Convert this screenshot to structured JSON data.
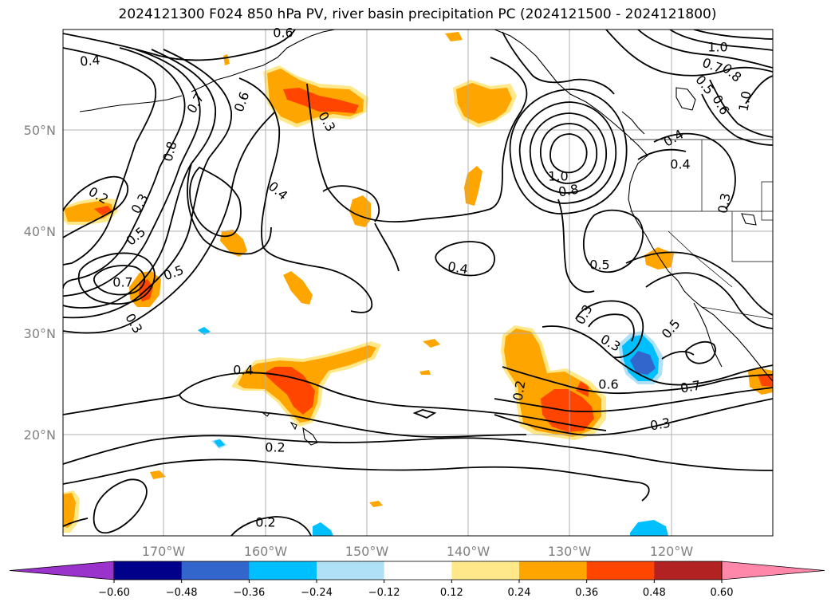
{
  "title": "2024121300 F024 850 hPa PV, river basin precipitation PC (2024121500 - 2024121800)",
  "map": {
    "lat_labels": [
      "50°N",
      "40°N",
      "30°N",
      "20°N"
    ],
    "lon_labels": [
      "170°W",
      "160°W",
      "150°W",
      "140°W",
      "130°W",
      "120°W"
    ],
    "contour_labels": [
      "0.4",
      "0.6",
      "0.3",
      "0.6",
      "0.7",
      "0.8",
      "1.0",
      "0.7",
      "0.8",
      "0.5",
      "0.6",
      "1.0",
      "0.4",
      "0.4",
      "0.3",
      "0.2",
      "0.3",
      "0.5",
      "0.7",
      "0.5",
      "0.3",
      "0.4",
      "1.0",
      "0.8",
      "0.5",
      "0.3",
      "0.3",
      "0.5",
      "0.6",
      "0.7",
      "0.3",
      "0.4",
      "0.4",
      "0.2",
      "0.2",
      "0.2"
    ],
    "land_color": "#ffffff",
    "contour_color": "#000000"
  },
  "colorbar": {
    "ticks": [
      "−0.60",
      "−0.48",
      "−0.36",
      "−0.24",
      "−0.12",
      "0.12",
      "0.24",
      "0.36",
      "0.48",
      "0.60"
    ],
    "colors": [
      "#9933cc",
      "#00008b",
      "#3366cc",
      "#00bfff",
      "#b0e0f6",
      "#ffffff",
      "#ffe88a",
      "#ffa500",
      "#ff4500",
      "#b22222",
      "#ff88aa"
    ],
    "extend": "both"
  }
}
